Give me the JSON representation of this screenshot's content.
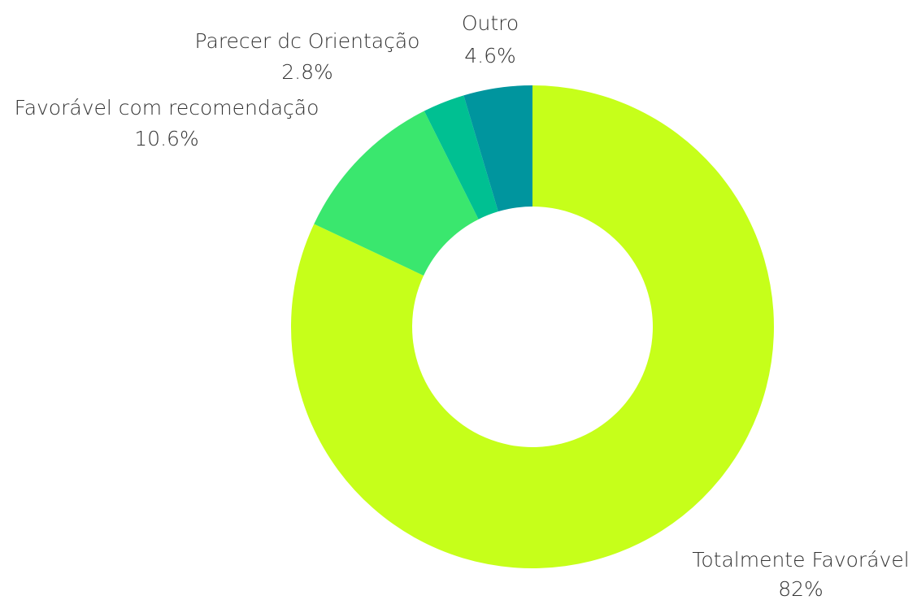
{
  "chart_data": {
    "type": "donut",
    "categories": [
      "Totalmente Favorável",
      "Favorável com recomendação",
      "Parecer dc Orientação",
      "Outro"
    ],
    "values": [
      82,
      10.6,
      2.8,
      4.6
    ],
    "value_labels": [
      "82%",
      "10.6%",
      "2.8%",
      "4.6%"
    ],
    "colors": [
      "#c6ff1a",
      "#3ae76e",
      "#00c092",
      "#00959e"
    ]
  }
}
